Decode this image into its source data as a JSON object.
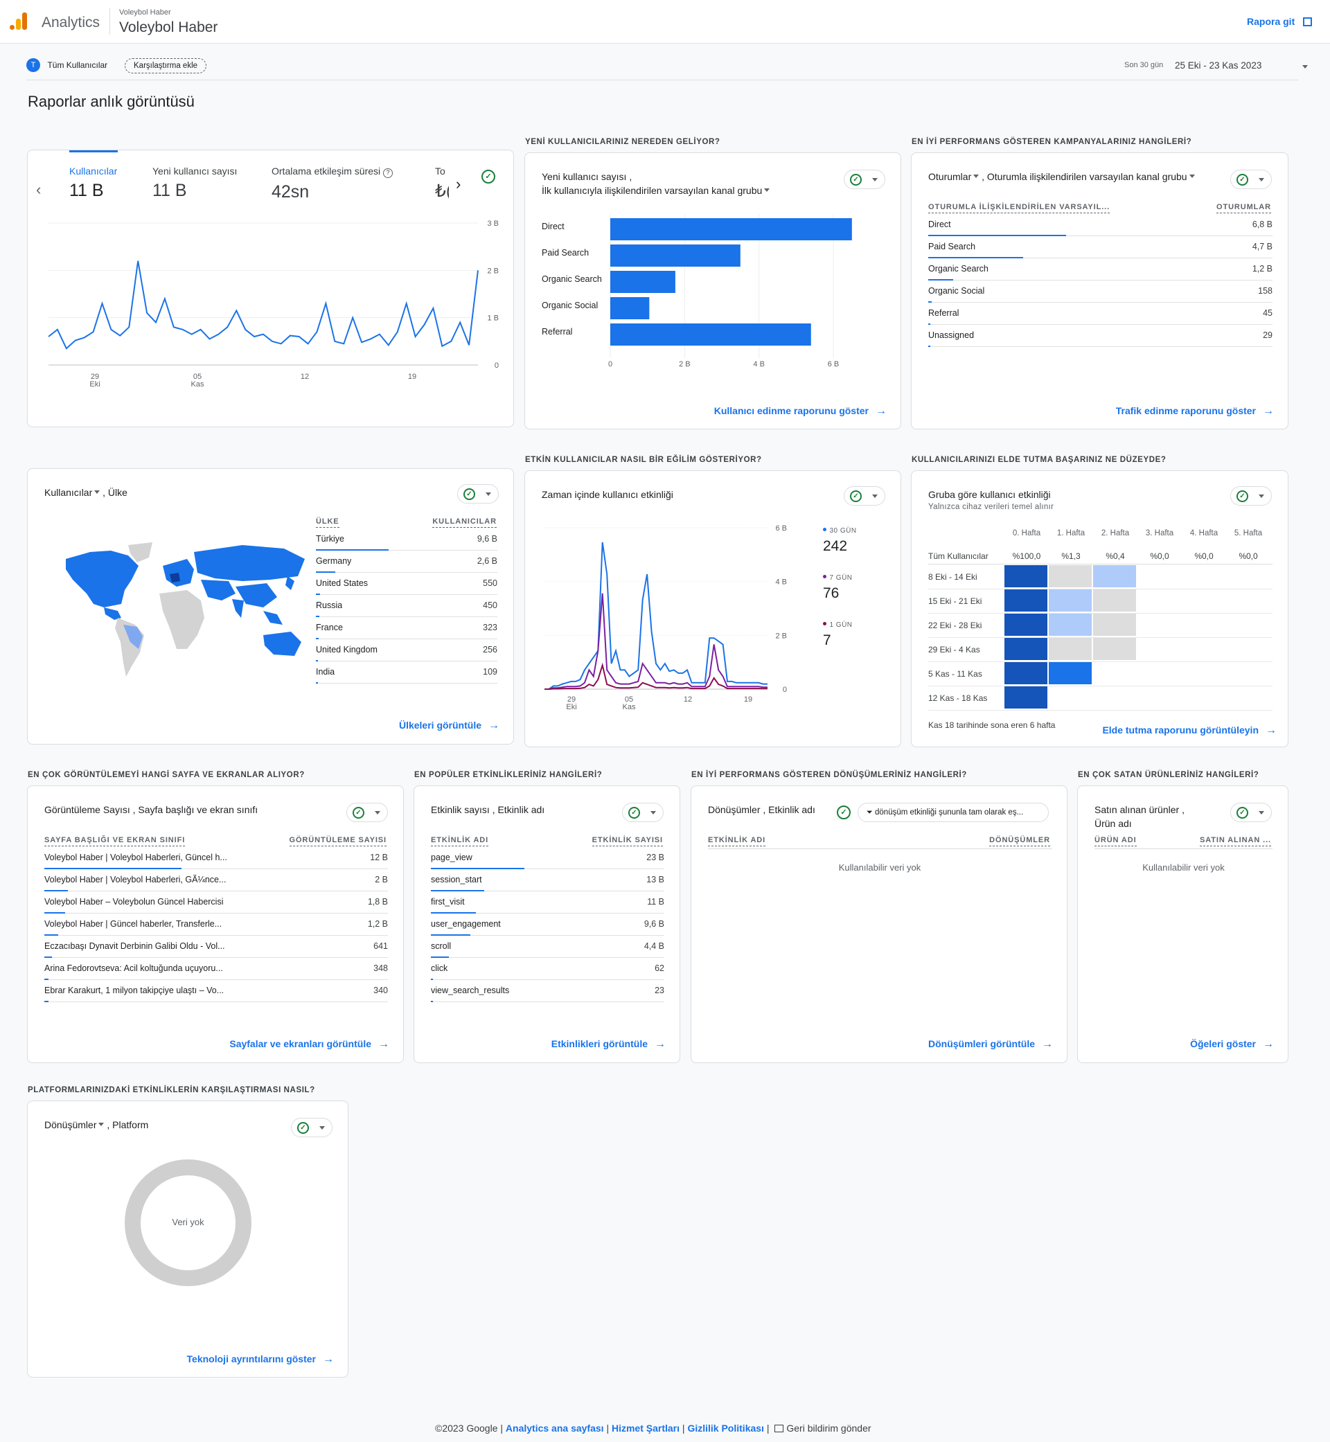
{
  "header": {
    "app": "Analytics",
    "account": "Voleybol Haber",
    "property": "Voleybol Haber",
    "report_link": "Rapora git"
  },
  "filter": {
    "all_users": "Tüm Kullanıcılar",
    "compare": "Karşılaştırma ekle",
    "range_label": "Son 30 gün",
    "range": "25 Eki - 23 Kas 2023"
  },
  "page_title": "Raporlar anlık görüntüsü",
  "card1": {
    "tabs": [
      {
        "label": "Kullanıcılar",
        "value": "11 B"
      },
      {
        "label": "Yeni kullanıcı sayısı",
        "value": "11 B"
      },
      {
        "label": "Ortalama etkileşim süresi",
        "value": "42sn"
      },
      {
        "label": "To",
        "value": "₺("
      }
    ],
    "chart_data": {
      "type": "line",
      "x_labels": [
        "29\nEki",
        "05\nKas",
        "12",
        "19"
      ],
      "y_ticks": [
        "3 B",
        "2 B",
        "1 B",
        "0"
      ],
      "ylim": [
        0,
        3000
      ],
      "values": [
        600,
        750,
        350,
        520,
        580,
        700,
        1300,
        750,
        620,
        800,
        2200,
        1100,
        900,
        1400,
        800,
        750,
        650,
        750,
        550,
        650,
        800,
        1150,
        750,
        600,
        650,
        500,
        450,
        620,
        600,
        450,
        700,
        1300,
        500,
        450,
        1000,
        480,
        550,
        650,
        420,
        700,
        1300,
        600,
        850,
        1200,
        400,
        500,
        900,
        420,
        2000
      ]
    }
  },
  "card2": {
    "section": "YENİ KULLANICILARINIZ NEREDEN GELİYOR?",
    "title1": "Yeni kullanıcı sayısı ,",
    "title2": "İlk kullanıcıyla ilişkilendirilen varsayılan kanal grubu",
    "chart_data": {
      "type": "bar",
      "categories": [
        "Direct",
        "Paid Search",
        "Organic Search",
        "Organic Social",
        "Referral"
      ],
      "values": [
        6500,
        3500,
        1750,
        1050,
        5400
      ],
      "x_ticks": [
        "0",
        "2 B",
        "4 B",
        "6 B"
      ],
      "xlim": [
        0,
        8000
      ]
    },
    "link": "Kullanıcı edinme raporunu göster"
  },
  "card3": {
    "section": "EN İYİ PERFORMANS GÖSTEREN KAMPANYALARINIZ HANGİLERİ?",
    "title_a": "Oturumlar",
    "title_b": " , Oturumla ilişkilendirilen varsayılan kanal grubu",
    "col1": "OTURUMLA İLİŞKİLENDİRİLEN VARSAYIL...",
    "col2": "OTURUMLAR",
    "rows": [
      {
        "label": "Direct",
        "value": "6,8 B",
        "frac": 1
      },
      {
        "label": "Paid Search",
        "value": "4,7 B",
        "frac": 0.69
      },
      {
        "label": "Organic Search",
        "value": "1,2 B",
        "frac": 0.18
      },
      {
        "label": "Organic Social",
        "value": "158",
        "frac": 0.023
      },
      {
        "label": "Referral",
        "value": "45",
        "frac": 0.007
      },
      {
        "label": "Unassigned",
        "value": "29",
        "frac": 0.004
      }
    ],
    "link": "Trafik edinme raporunu göster"
  },
  "card4": {
    "title_a": "Kullanıcılar",
    "title_b": " , Ülke",
    "col1": "ÜLKE",
    "col2": "KULLANICILAR",
    "rows": [
      {
        "label": "Türkiye",
        "value": "9,6 B",
        "frac": 1
      },
      {
        "label": "Germany",
        "value": "2,6 B",
        "frac": 0.27
      },
      {
        "label": "United States",
        "value": "550",
        "frac": 0.06
      },
      {
        "label": "Russia",
        "value": "450",
        "frac": 0.047
      },
      {
        "label": "France",
        "value": "323",
        "frac": 0.034
      },
      {
        "label": "United Kingdom",
        "value": "256",
        "frac": 0.027
      },
      {
        "label": "India",
        "value": "109",
        "frac": 0.011
      }
    ],
    "link": "Ülkeleri görüntüle"
  },
  "card5": {
    "section": "ETKİN KULLANICILAR NASIL BİR EĞİLİM GÖSTERİYOR?",
    "title": "Zaman içinde kullanıcı etkinliği",
    "y_ticks": [
      "6 B",
      "4 B",
      "2 B",
      "0"
    ],
    "x_labels": [
      "29\nEki",
      "05\nKas",
      "12",
      "19"
    ],
    "legend": [
      {
        "name": "30 GÜN",
        "value": "242",
        "color": "#1a73e8"
      },
      {
        "name": "7 GÜN",
        "value": "76",
        "color": "#7b1fa2"
      },
      {
        "name": "1 GÜN",
        "value": "7",
        "color": "#880e4f"
      }
    ]
  },
  "card6": {
    "section": "KULLANICILARINIZI ELDE TUTMA BAŞARINIZ NE DÜZEYDE?",
    "title": "Gruba göre kullanıcı etkinliği",
    "subtitle": "Yalnızca cihaz verileri temel alınır",
    "weeks": [
      "0. Hafta",
      "1. Hafta",
      "2. Hafta",
      "3. Hafta",
      "4. Hafta",
      "5. Hafta"
    ],
    "all_label": "Tüm Kullanıcılar",
    "all_values": [
      "%100,0",
      "%1,3",
      "%0,4",
      "%0,0",
      "%0,0",
      "%0,0"
    ],
    "cohorts": [
      "8 Eki - 14 Eki",
      "15 Eki - 21 Eki",
      "22 Eki - 28 Eki",
      "29 Eki - 4 Kas",
      "5 Kas - 11 Kas",
      "12 Kas - 18 Kas"
    ],
    "note": "Kas 18 tarihinde sona eren 6 hafta",
    "link": "Elde tutma raporunu görüntüleyin"
  },
  "card7": {
    "section": "EN ÇOK GÖRÜNTÜLEMEYİ HANGİ SAYFA VE EKRANLAR ALIYOR?",
    "title": "Görüntüleme Sayısı , Sayfa başlığı ve ekran sınıfı",
    "col1": "SAYFA BAŞLIĞI VE EKRAN SINIFI",
    "col2": "GÖRÜNTÜLEME SAYISI",
    "rows": [
      {
        "label": "Voleybol Haber | Voleybol Haberleri, Güncel h...",
        "value": "12 B",
        "frac": 1
      },
      {
        "label": "Voleybol Haber | Voleybol Haberleri, GÃ¼nce...",
        "value": "2 B",
        "frac": 0.17
      },
      {
        "label": "Voleybol Haber – Voleybolun Güncel Habercisi",
        "value": "1,8 B",
        "frac": 0.15
      },
      {
        "label": "Voleybol Haber | Güncel haberler, Transferle...",
        "value": "1,2 B",
        "frac": 0.1
      },
      {
        "label": "Eczacıbaşı Dynavit Derbinin Galibi Oldu - Vol...",
        "value": "641",
        "frac": 0.053
      },
      {
        "label": "Arina Fedorovtseva: Acil koltuğunda uçuyoru...",
        "value": "348",
        "frac": 0.029
      },
      {
        "label": "Ebrar Karakurt, 1 milyon takipçiye ulaştı – Vo...",
        "value": "340",
        "frac": 0.028
      }
    ],
    "link": "Sayfalar ve ekranları görüntüle"
  },
  "card8": {
    "section": "EN POPÜLER ETKİNLİKLERİNİZ HANGİLERİ?",
    "title": "Etkinlik sayısı , Etkinlik adı",
    "col1": "ETKİNLİK ADI",
    "col2": "ETKİNLİK SAYISI",
    "rows": [
      {
        "label": "page_view",
        "value": "23 B",
        "frac": 1
      },
      {
        "label": "session_start",
        "value": "13 B",
        "frac": 0.57
      },
      {
        "label": "first_visit",
        "value": "11 B",
        "frac": 0.48
      },
      {
        "label": "user_engagement",
        "value": "9,6 B",
        "frac": 0.42
      },
      {
        "label": "scroll",
        "value": "4,4 B",
        "frac": 0.19
      },
      {
        "label": "click",
        "value": "62",
        "frac": 0.003
      },
      {
        "label": "view_search_results",
        "value": "23",
        "frac": 0.001
      }
    ],
    "link": "Etkinlikleri görüntüle"
  },
  "card9": {
    "section": "EN İYİ PERFORMANS GÖSTEREN DÖNÜŞÜMLERİNİZ HANGİLERİ?",
    "title": "Dönüşümler , Etkinlik adı",
    "filter": "dönüşüm etkinliği şununla tam olarak eş...",
    "col1": "ETKİNLİK ADI",
    "col2": "DÖNÜŞÜMLER",
    "empty": "Kullanılabilir veri yok",
    "link": "Dönüşümleri görüntüle"
  },
  "card10": {
    "section": "EN ÇOK SATAN ÜRÜNLERİNİZ HANGİLERİ?",
    "title1": "Satın alınan ürünler ,",
    "title2": "Ürün adı",
    "col1": "ÜRÜN ADI",
    "col2": "SATIN ALINAN ...",
    "empty": "Kullanılabilir veri yok",
    "link": "Öğeleri göster"
  },
  "card11": {
    "section": "PLATFORMLARINIZDAKİ ETKİNLİKLERİN KARŞILAŞTIRMASI NASIL?",
    "title_a": "Dönüşümler",
    "title_b": " , Platform",
    "empty": "Veri yok",
    "link": "Teknoloji ayrıntılarını göster"
  },
  "footer": {
    "copyright": "©2023 Google |",
    "home": "Analytics ana sayfası",
    "terms": "Hizmet Şartları",
    "privacy": "Gizlilik Politikası",
    "sep": "|",
    "feedback": "Geri bildirim gönder"
  },
  "colors": {
    "accent": "#1a73e8",
    "ok": "#188038"
  }
}
